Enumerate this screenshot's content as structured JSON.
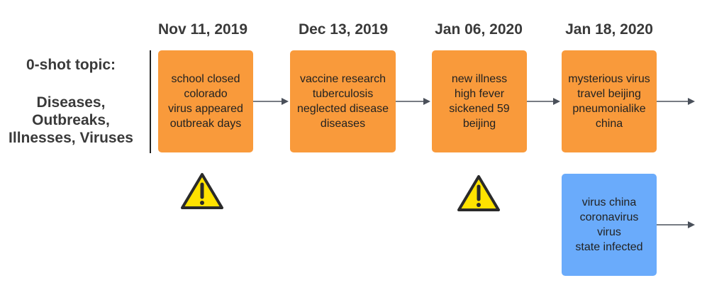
{
  "topic": {
    "label": "0-shot topic:",
    "lines": [
      "Diseases,",
      "Outbreaks,",
      "Illnesses, Viruses"
    ]
  },
  "timeline": [
    {
      "date": "Nov 11, 2019",
      "lines": [
        "school closed",
        "colorado",
        "virus appeared",
        "outbreak days"
      ],
      "warning": true
    },
    {
      "date": "Dec 13, 2019",
      "lines": [
        "vaccine research",
        "tuberculosis",
        "neglected disease",
        "diseases"
      ],
      "warning": false
    },
    {
      "date": "Jan 06, 2020",
      "lines": [
        "new illness",
        "high fever",
        "sickened 59",
        "beijing"
      ],
      "warning": true
    },
    {
      "date": "Jan 18, 2020",
      "lines": [
        "mysterious virus",
        "travel beijing",
        "pneumonialike",
        "china"
      ],
      "warning": false
    }
  ],
  "branch": {
    "lines": [
      "virus china",
      "coronavirus",
      "virus",
      "state infected"
    ]
  },
  "colors": {
    "orange_box": "#f99a3b",
    "blue_box": "#6aabfb",
    "arrow": "#4a505a",
    "warning_fill": "#ffe200",
    "warning_stroke": "#2a2a2a"
  },
  "icons": {
    "warning": "warning-triangle-icon",
    "arrow": "arrow-right-icon"
  }
}
